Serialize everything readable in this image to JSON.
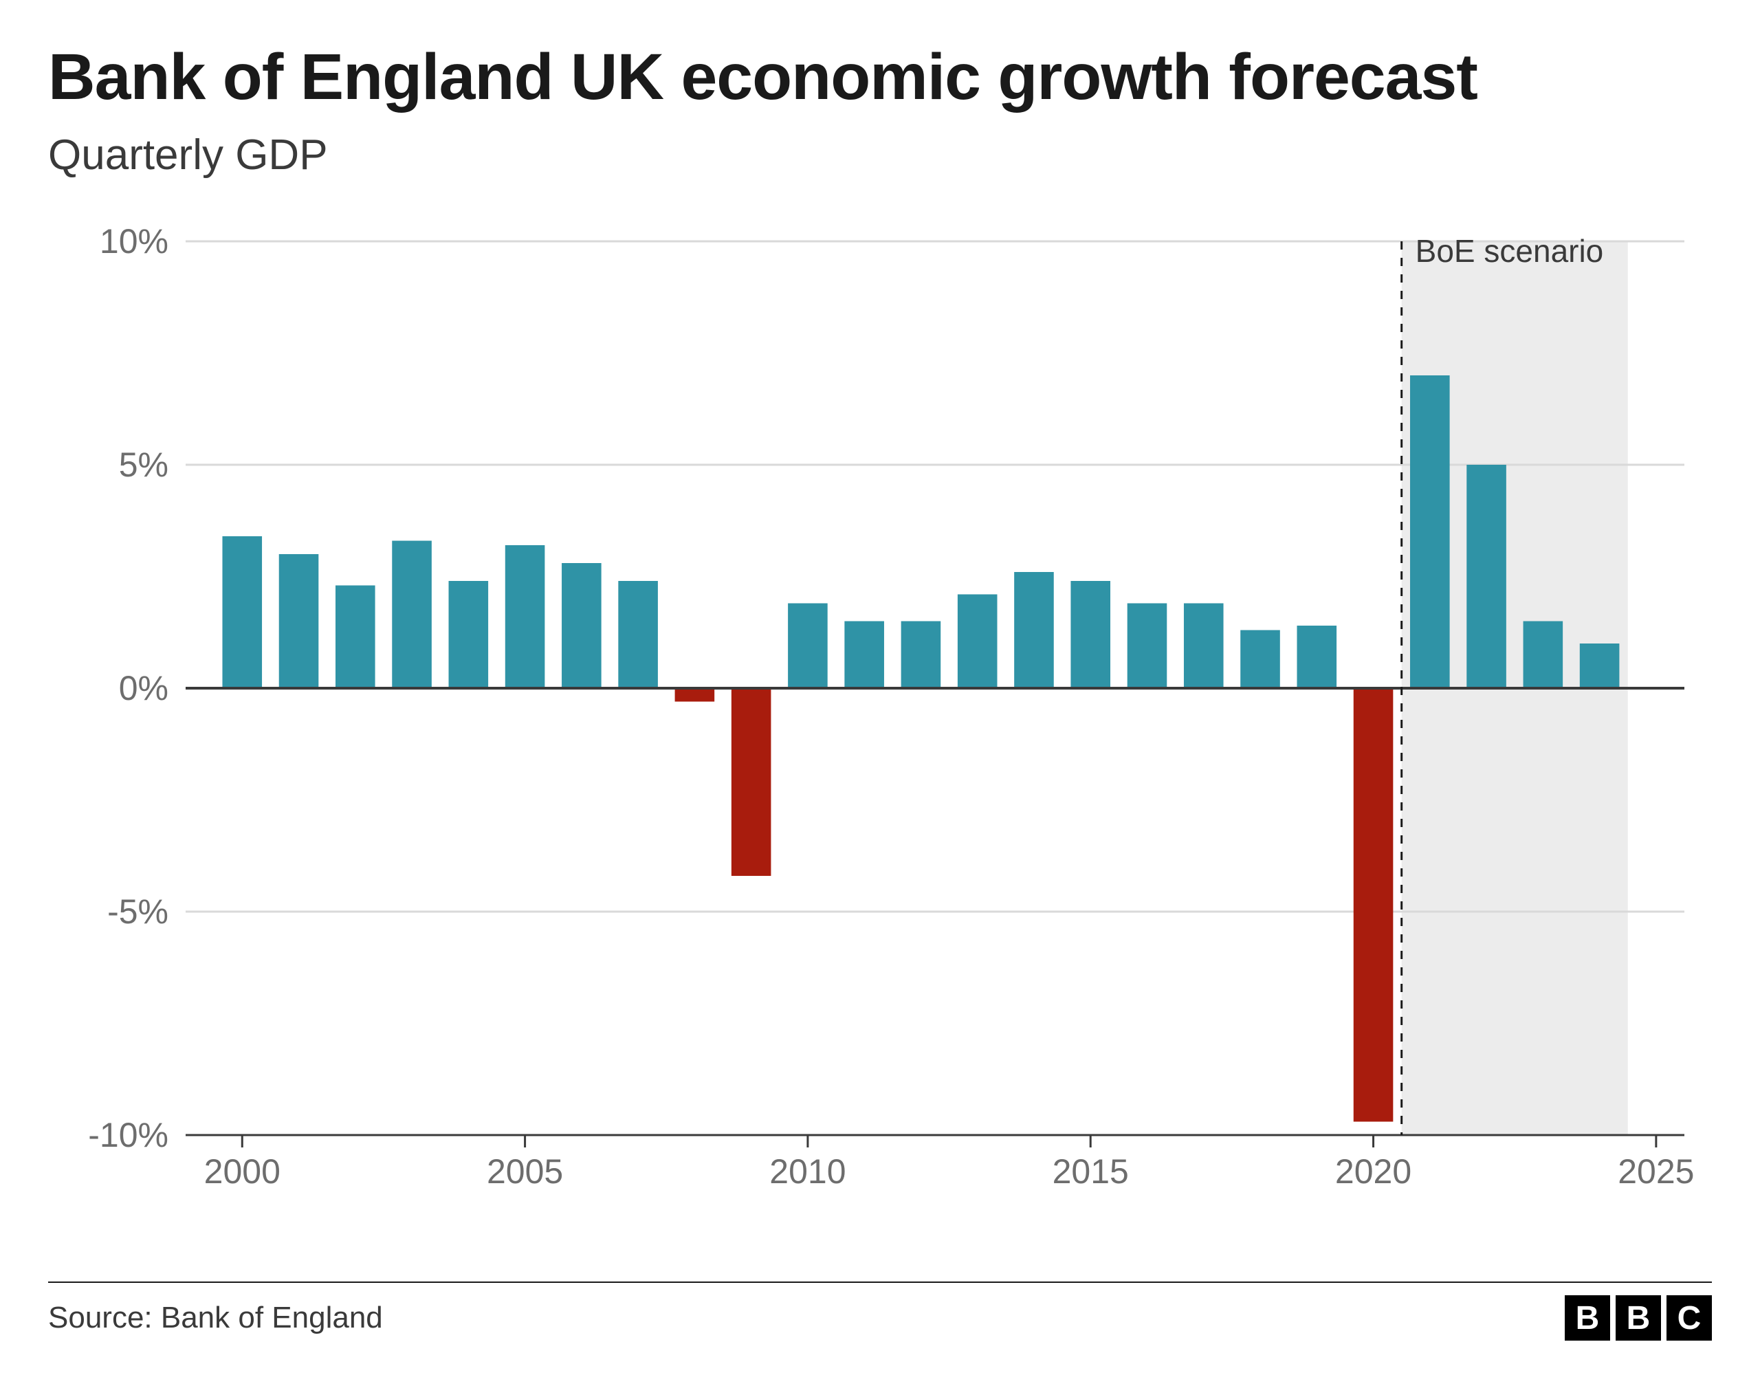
{
  "title": "Bank of England UK economic growth forecast",
  "subtitle": "Quarterly GDP",
  "source": "Source: Bank of England",
  "logo_letters": [
    "B",
    "B",
    "C"
  ],
  "chart": {
    "type": "bar",
    "title_fontsize": 95,
    "subtitle_fontsize": 62,
    "label_fontsize": 50,
    "annotation_label": "BoE scenario",
    "annotation_fontsize": 46,
    "background_color": "#ffffff",
    "positive_color": "#2f93a6",
    "negative_color": "#a81c0d",
    "grid_color": "#d9d9d9",
    "axis_color": "#3a3a3a",
    "tick_text_color": "#6d6d6d",
    "forecast_region_color": "#ececec",
    "forecast_line_color": "#1a1a1a",
    "ylim": [
      -10,
      10
    ],
    "yticks": [
      -10,
      -5,
      0,
      5,
      10
    ],
    "ytick_labels": [
      "-10%",
      "-5%",
      "0%",
      "5%",
      "10%"
    ],
    "xtick_years": [
      2000,
      2005,
      2010,
      2015,
      2020,
      2025
    ],
    "x_start": 1999,
    "x_end": 2025.5,
    "forecast_start_year": 2020.5,
    "forecast_end_year": 2024.5,
    "bar_width_ratio": 0.7,
    "bars": [
      {
        "year": 2000,
        "value": 3.4
      },
      {
        "year": 2001,
        "value": 3.0
      },
      {
        "year": 2002,
        "value": 2.3
      },
      {
        "year": 2003,
        "value": 3.3
      },
      {
        "year": 2004,
        "value": 2.4
      },
      {
        "year": 2005,
        "value": 3.2
      },
      {
        "year": 2006,
        "value": 2.8
      },
      {
        "year": 2007,
        "value": 2.4
      },
      {
        "year": 2008,
        "value": -0.3
      },
      {
        "year": 2009,
        "value": -4.2
      },
      {
        "year": 2010,
        "value": 1.9
      },
      {
        "year": 2011,
        "value": 1.5
      },
      {
        "year": 2012,
        "value": 1.5
      },
      {
        "year": 2013,
        "value": 2.1
      },
      {
        "year": 2014,
        "value": 2.6
      },
      {
        "year": 2015,
        "value": 2.4
      },
      {
        "year": 2016,
        "value": 1.9
      },
      {
        "year": 2017,
        "value": 1.9
      },
      {
        "year": 2018,
        "value": 1.3
      },
      {
        "year": 2019,
        "value": 1.4
      },
      {
        "year": 2020,
        "value": -9.7
      },
      {
        "year": 2021,
        "value": 7.0
      },
      {
        "year": 2022,
        "value": 5.0
      },
      {
        "year": 2023,
        "value": 1.5
      },
      {
        "year": 2024,
        "value": 1.0
      }
    ]
  }
}
